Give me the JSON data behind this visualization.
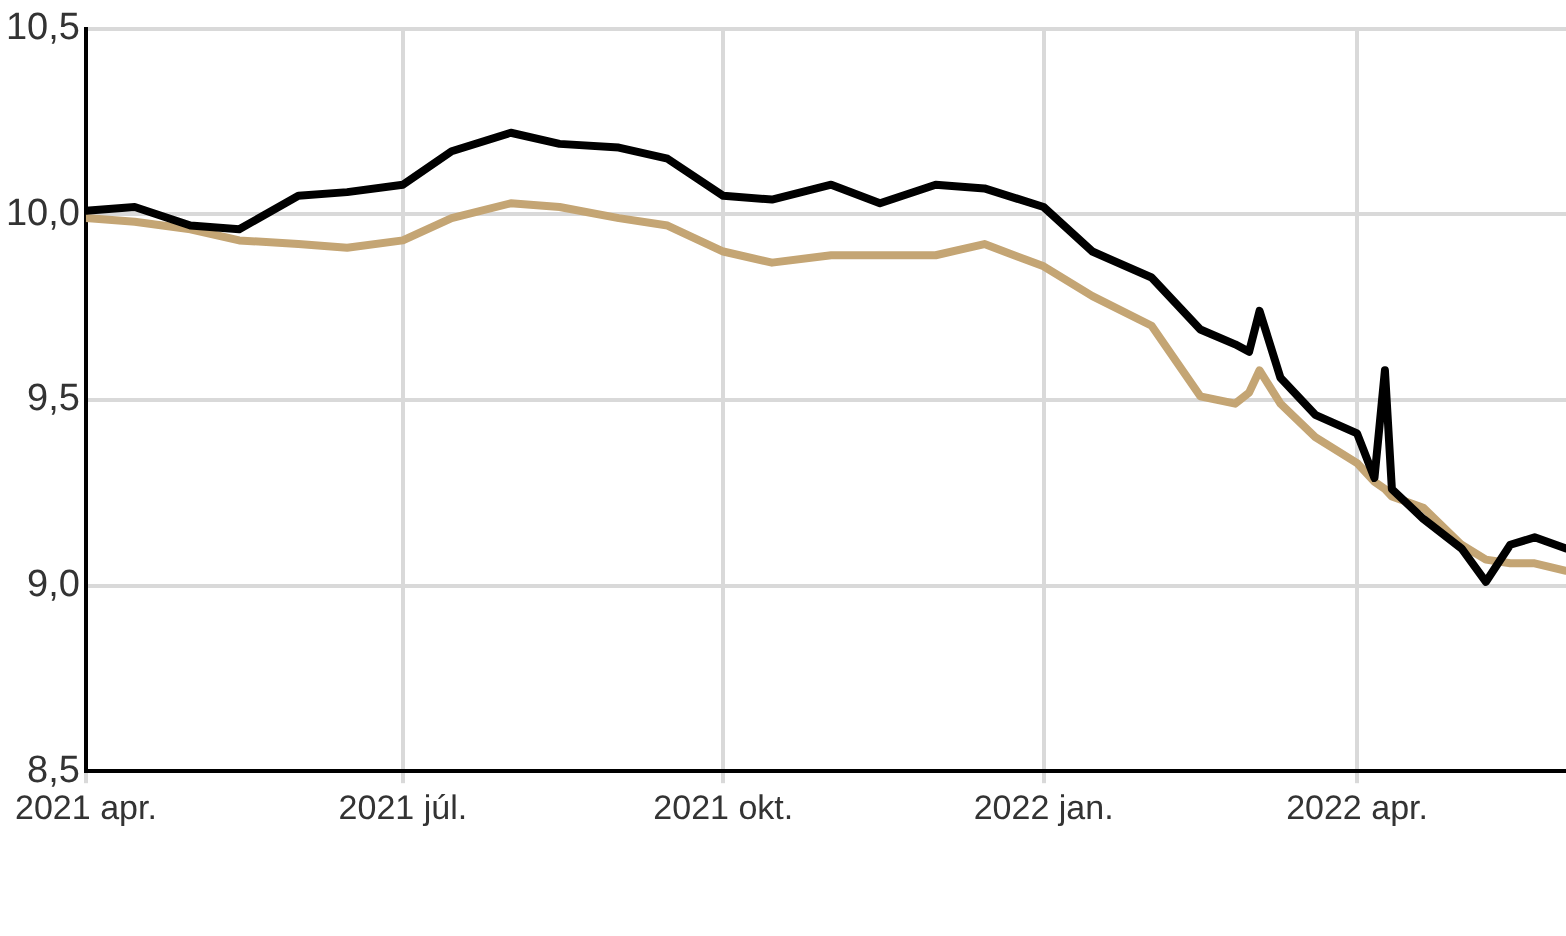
{
  "chart_data": {
    "type": "line",
    "x": [
      "2021-04-01",
      "2021-04-15",
      "2021-05-01",
      "2021-05-15",
      "2021-06-01",
      "2021-06-15",
      "2021-07-01",
      "2021-07-15",
      "2021-08-01",
      "2021-08-15",
      "2021-09-01",
      "2021-09-15",
      "2021-10-01",
      "2021-10-15",
      "2021-11-01",
      "2021-11-15",
      "2021-12-01",
      "2021-12-15",
      "2022-01-01",
      "2022-01-15",
      "2022-02-01",
      "2022-02-15",
      "2022-02-25",
      "2022-03-01",
      "2022-03-04",
      "2022-03-10",
      "2022-03-20",
      "2022-04-01",
      "2022-04-06",
      "2022-04-09",
      "2022-04-11",
      "2022-04-20",
      "2022-05-01",
      "2022-05-08",
      "2022-05-15",
      "2022-05-22",
      "2022-05-31"
    ],
    "series": [
      {
        "color": "#c4a574",
        "values": [
          9.99,
          9.98,
          9.96,
          9.93,
          9.92,
          9.91,
          9.93,
          9.99,
          10.03,
          10.02,
          9.99,
          9.97,
          9.9,
          9.87,
          9.89,
          9.89,
          9.89,
          9.92,
          9.86,
          9.78,
          9.7,
          9.51,
          9.49,
          9.52,
          9.58,
          9.49,
          9.4,
          9.33,
          9.28,
          9.26,
          9.24,
          9.21,
          9.11,
          9.07,
          9.06,
          9.06,
          9.04
        ]
      },
      {
        "color": "#000000",
        "values": [
          10.01,
          10.02,
          9.97,
          9.96,
          10.05,
          10.06,
          10.08,
          10.17,
          10.22,
          10.19,
          10.18,
          10.15,
          10.05,
          10.04,
          10.08,
          10.03,
          10.08,
          10.07,
          10.02,
          9.9,
          9.83,
          9.69,
          9.65,
          9.63,
          9.74,
          9.56,
          9.46,
          9.41,
          9.29,
          9.58,
          9.26,
          9.18,
          9.1,
          9.01,
          9.11,
          9.13,
          9.1
        ]
      }
    ],
    "xlim": [
      "2021-04-01",
      "2022-05-31"
    ],
    "xticks": [
      {
        "value": "2021-04-01",
        "label": "2021 apr."
      },
      {
        "value": "2021-07-01",
        "label": "2021 júl."
      },
      {
        "value": "2021-10-01",
        "label": "2021 okt."
      },
      {
        "value": "2022-01-01",
        "label": "2022 jan."
      },
      {
        "value": "2022-04-01",
        "label": "2022 apr."
      }
    ],
    "ylim": [
      8.5,
      10.5
    ],
    "yticks": [
      {
        "value": 8.5,
        "label": "8,5"
      },
      {
        "value": 9.0,
        "label": "9,0"
      },
      {
        "value": 9.5,
        "label": "9,5"
      },
      {
        "value": 10.0,
        "label": "10,0"
      },
      {
        "value": 10.5,
        "label": "10,5"
      }
    ],
    "grid": true,
    "marker": "none",
    "line_style": "solid"
  }
}
